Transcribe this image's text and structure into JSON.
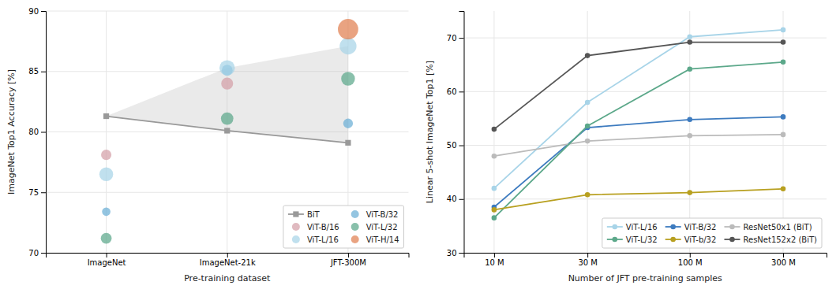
{
  "chart_data": [
    {
      "type": "scatter",
      "xlabel": "Pre-training dataset",
      "ylabel": "ImageNet Top1 Accuracy [%]",
      "categories": [
        "ImageNet",
        "ImageNet-21k",
        "JFT-300M"
      ],
      "ylim": [
        70,
        90
      ],
      "yticks": [
        70,
        75,
        80,
        85,
        90
      ],
      "grid": true,
      "legend": "lower right",
      "band": {
        "upper": [
          81.3,
          85.3,
          87.1
        ],
        "lower": [
          81.3,
          80.1,
          79.1
        ],
        "color": "#bbbbbb"
      },
      "series": [
        {
          "name": "BiT",
          "type": "line",
          "marker": "square",
          "color": "#999999",
          "values": [
            81.3,
            80.1,
            79.1
          ]
        },
        {
          "name": "ViT-B/32",
          "type": "scatter",
          "marker": "circle",
          "color": "#6baed6",
          "values": [
            73.4,
            85.1,
            80.7
          ],
          "sizes": [
            60,
            100,
            80
          ]
        },
        {
          "name": "ViT-B/16",
          "type": "scatter",
          "marker": "circle",
          "color": "#d4a0a8",
          "values": [
            78.1,
            84.0,
            null
          ],
          "sizes": [
            90,
            120,
            null
          ]
        },
        {
          "name": "ViT-L/32",
          "type": "scatter",
          "marker": "circle",
          "color": "#5ca88a",
          "values": [
            71.2,
            81.1,
            84.4
          ],
          "sizes": [
            100,
            130,
            160
          ]
        },
        {
          "name": "ViT-L/16",
          "type": "scatter",
          "marker": "circle",
          "color": "#a8d4e8",
          "values": [
            76.5,
            85.3,
            87.1
          ],
          "sizes": [
            160,
            200,
            240
          ]
        },
        {
          "name": "ViT-H/14",
          "type": "scatter",
          "marker": "circle",
          "color": "#e08050",
          "values": [
            null,
            null,
            88.5
          ],
          "sizes": [
            null,
            null,
            350
          ]
        }
      ]
    },
    {
      "type": "line",
      "xlabel": "Number of JFT pre-training samples",
      "ylabel": "Linear 5-shot ImageNet Top1 [%]",
      "log": "x",
      "x": [
        10,
        30,
        100,
        300
      ],
      "xlim": [
        7,
        500
      ],
      "xticks": [
        {
          "value": 10,
          "label": "10 M"
        },
        {
          "value": 30,
          "label": "30 M"
        },
        {
          "value": 100,
          "label": "100 M"
        },
        {
          "value": 300,
          "label": "300 M"
        }
      ],
      "ylim": [
        30,
        75
      ],
      "yticks": [
        30,
        40,
        50,
        60,
        70
      ],
      "grid": true,
      "legend": "lower right",
      "marker": "circle",
      "series": [
        {
          "name": "ViT-L/16",
          "color": "#a8d4e8",
          "values": [
            42.0,
            58.0,
            70.2,
            71.5
          ]
        },
        {
          "name": "ViT-B/32",
          "color": "#3d7bbf",
          "values": [
            38.5,
            53.3,
            54.8,
            55.3
          ]
        },
        {
          "name": "ResNet50x1 (BiT)",
          "color": "#bbbbbb",
          "values": [
            48.0,
            50.8,
            51.8,
            52.0
          ]
        },
        {
          "name": "ViT-L/32",
          "color": "#5ca88a",
          "values": [
            36.5,
            53.6,
            64.2,
            65.5
          ]
        },
        {
          "name": "ViT-b/32",
          "color": "#b8a020",
          "values": [
            38.0,
            40.8,
            41.2,
            41.9
          ]
        },
        {
          "name": "ResNet152x2 (BiT)",
          "color": "#555555",
          "values": [
            53.0,
            66.7,
            69.2,
            69.2
          ]
        }
      ]
    }
  ]
}
